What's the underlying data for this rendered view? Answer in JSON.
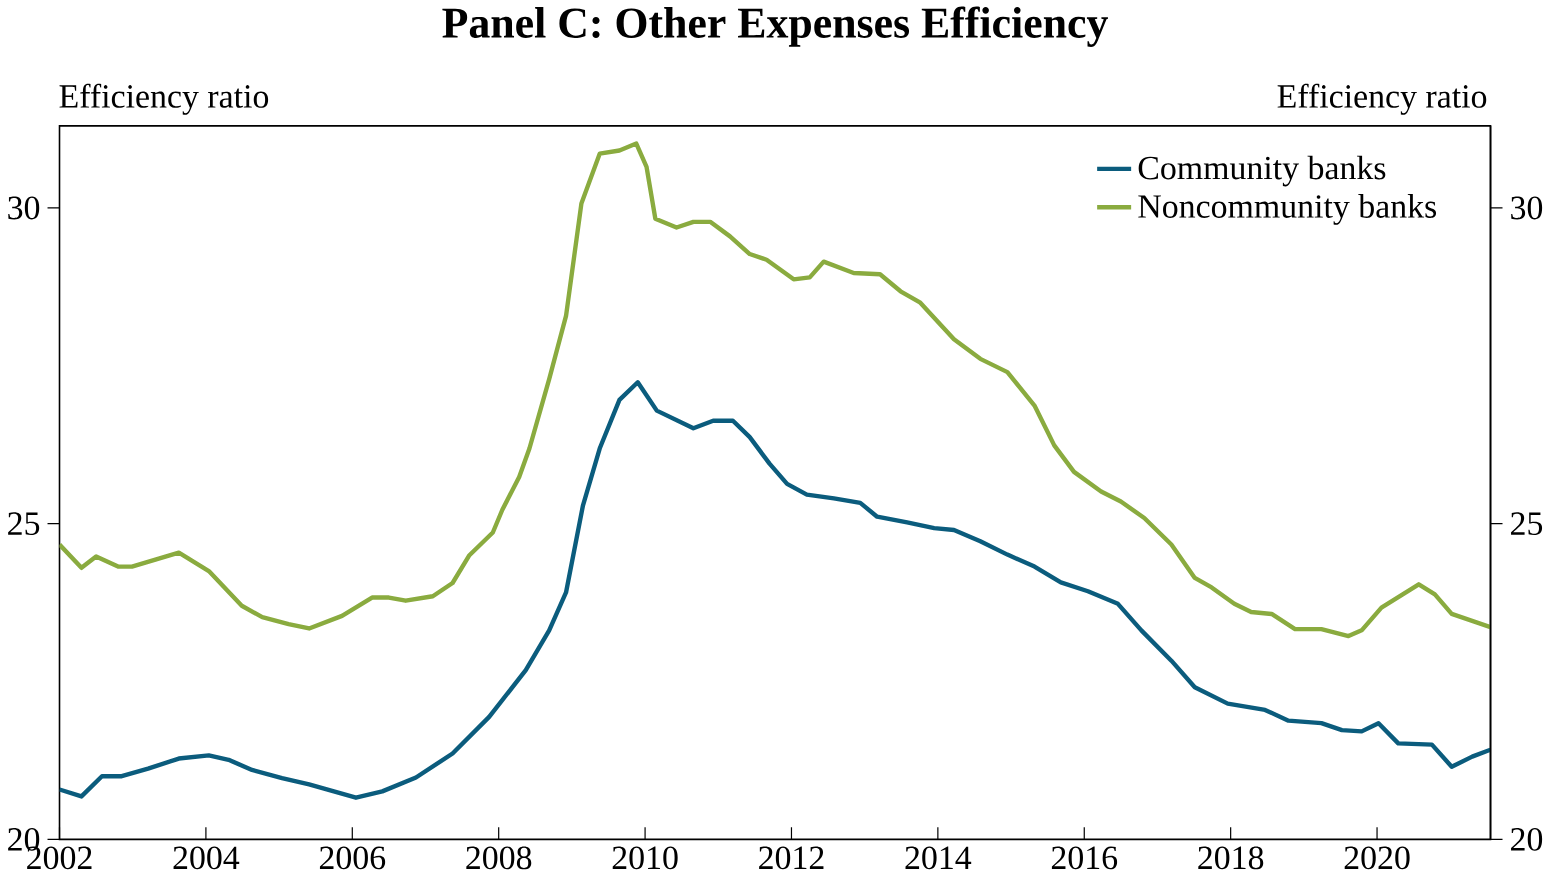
{
  "chart_data": {
    "type": "line",
    "title": "Panel C: Other Expenses Efficiency",
    "ylabel": "Efficiency ratio",
    "y2label": "Efficiency ratio",
    "xlim": [
      2002,
      2021.55
    ],
    "xticks": [
      2002,
      2004,
      2006,
      2008,
      2010,
      2012,
      2014,
      2016,
      2018,
      2020
    ],
    "ylim": [
      20,
      31.3
    ],
    "yticks": [
      20,
      25,
      30
    ],
    "y2lim": [
      20,
      31.3
    ],
    "y2ticks": [
      20,
      25,
      30
    ],
    "legend": "top right",
    "series": [
      {
        "name": "Community banks",
        "color": "#0b5c7d",
        "x": [
          2002,
          2002.3,
          2002.58,
          2002.85,
          2003.21,
          2003.63,
          2004.04,
          2004.31,
          2004.63,
          2005.04,
          2005.41,
          2006.05,
          2006.41,
          2006.87,
          2007.37,
          2007.87,
          2008.37,
          2008.69,
          2008.92,
          2009.15,
          2009.38,
          2009.65,
          2009.9,
          2010.16,
          2010.66,
          2010.93,
          2011.2,
          2011.43,
          2011.7,
          2011.94,
          2012.21,
          2012.58,
          2012.94,
          2013.17,
          2013.58,
          2013.95,
          2014.22,
          2014.58,
          2014.95,
          2015.32,
          2015.68,
          2016.05,
          2016.46,
          2016.78,
          2017.19,
          2017.51,
          2017.96,
          2018.47,
          2018.79,
          2019.24,
          2019.52,
          2019.79,
          2020.02,
          2020.29,
          2020.75,
          2021.02,
          2021.3,
          2021.55
        ],
        "values": [
          20.79,
          20.68,
          21.0,
          21.0,
          21.12,
          21.28,
          21.33,
          21.26,
          21.1,
          20.97,
          20.87,
          20.66,
          20.76,
          20.98,
          21.36,
          21.94,
          22.68,
          23.31,
          23.91,
          25.28,
          26.19,
          26.96,
          27.24,
          26.79,
          26.51,
          26.63,
          26.63,
          26.37,
          25.95,
          25.63,
          25.46,
          25.4,
          25.33,
          25.11,
          25.02,
          24.93,
          24.9,
          24.72,
          24.51,
          24.32,
          24.07,
          23.93,
          23.73,
          23.31,
          22.83,
          22.41,
          22.15,
          22.05,
          21.88,
          21.84,
          21.73,
          21.71,
          21.84,
          21.52,
          21.5,
          21.15,
          21.31,
          21.42
        ]
      },
      {
        "name": "Noncommunity banks",
        "color": "#8aab3f",
        "x": [
          2002,
          2002.3,
          2002.5,
          2002.8,
          2002.99,
          2003.31,
          2003.63,
          2004.04,
          2004.49,
          2004.77,
          2005.13,
          2005.41,
          2005.86,
          2006.27,
          2006.5,
          2006.73,
          2007.1,
          2007.37,
          2007.6,
          2007.92,
          2008.05,
          2008.28,
          2008.42,
          2008.69,
          2008.92,
          2009.13,
          2009.38,
          2009.65,
          2009.88,
          2010.02,
          2010.14,
          2010.43,
          2010.66,
          2010.89,
          2011.16,
          2011.43,
          2011.66,
          2012.03,
          2012.25,
          2012.44,
          2012.85,
          2013.21,
          2013.49,
          2013.76,
          2014.22,
          2014.58,
          2014.95,
          2015.32,
          2015.59,
          2015.86,
          2016.23,
          2016.5,
          2016.82,
          2017.19,
          2017.51,
          2017.74,
          2018.05,
          2018.28,
          2018.56,
          2018.88,
          2019.24,
          2019.61,
          2019.79,
          2020.06,
          2020.57,
          2020.79,
          2021.02,
          2021.55
        ],
        "values": [
          24.67,
          24.3,
          24.48,
          24.32,
          24.32,
          24.43,
          24.54,
          24.25,
          23.7,
          23.52,
          23.41,
          23.34,
          23.54,
          23.83,
          23.83,
          23.78,
          23.85,
          24.06,
          24.5,
          24.86,
          25.22,
          25.74,
          26.19,
          27.29,
          28.29,
          30.07,
          30.86,
          30.91,
          31.02,
          30.65,
          29.83,
          29.69,
          29.78,
          29.78,
          29.55,
          29.27,
          29.18,
          28.87,
          28.9,
          29.15,
          28.97,
          28.95,
          28.68,
          28.5,
          27.92,
          27.61,
          27.4,
          26.87,
          26.24,
          25.82,
          25.51,
          25.35,
          25.09,
          24.67,
          24.14,
          23.99,
          23.73,
          23.6,
          23.57,
          23.33,
          23.33,
          23.22,
          23.31,
          23.67,
          24.04,
          23.88,
          23.57,
          23.36
        ]
      }
    ]
  }
}
